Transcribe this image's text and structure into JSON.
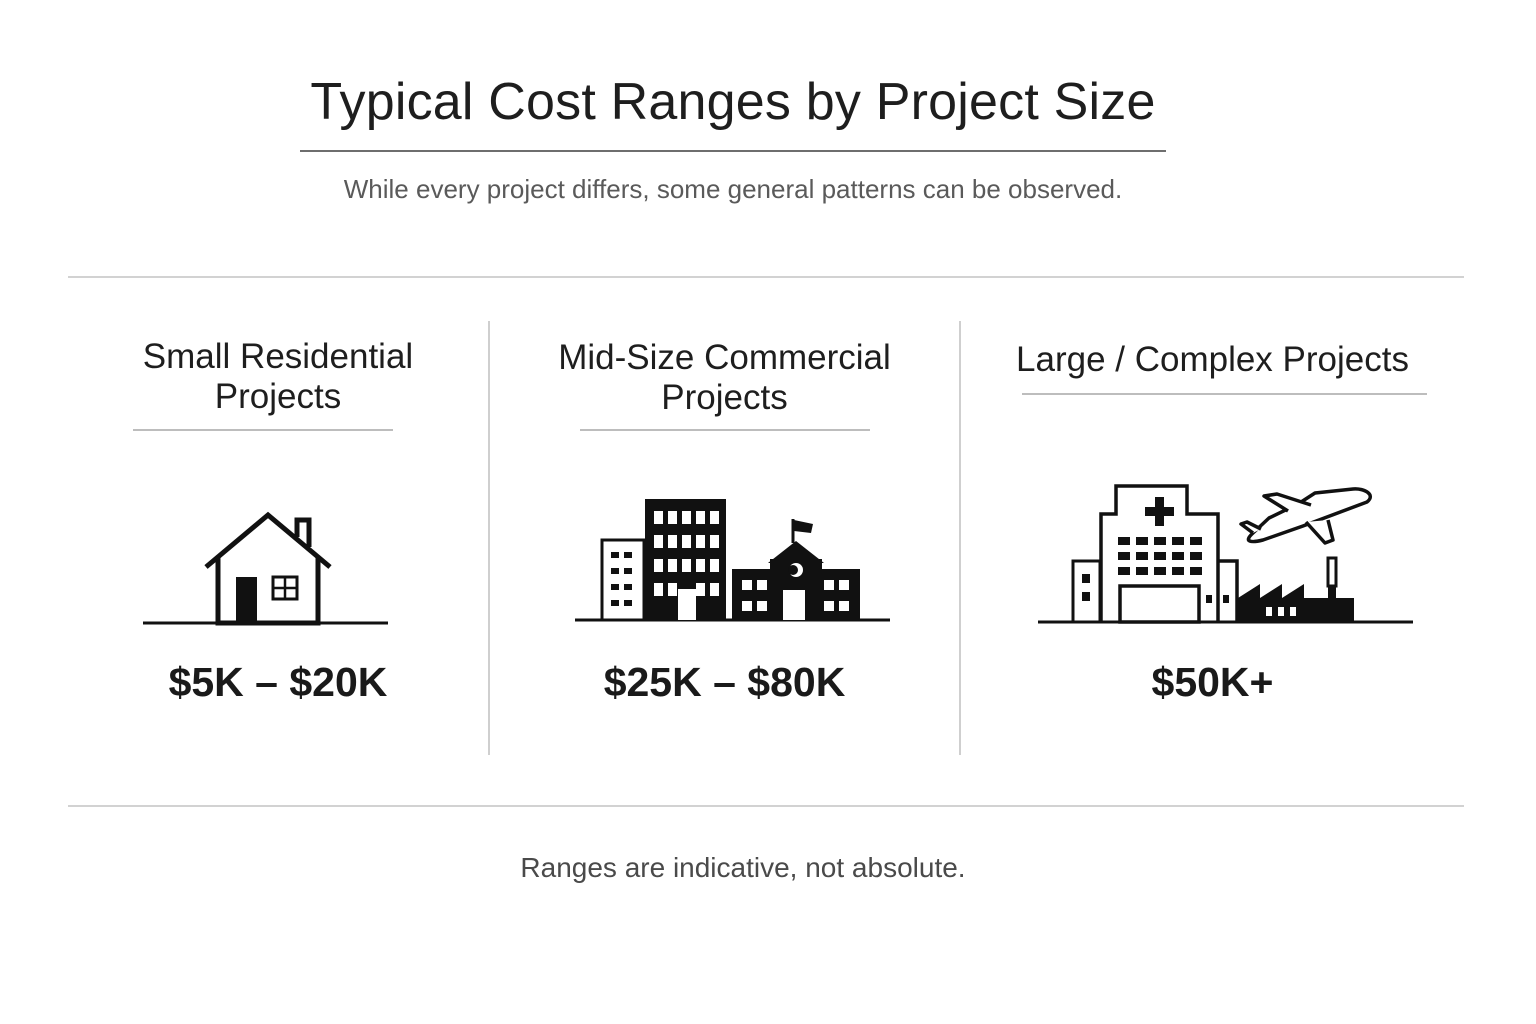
{
  "header": {
    "title": "Typical Cost Ranges by Project Size",
    "subtitle": "While every project differs, some general patterns can be observed."
  },
  "columns": [
    {
      "title_line1": "Small Residential",
      "title_line2": "Projects",
      "price": "$5K – $20K",
      "icon": "house-icon"
    },
    {
      "title_line1": "Mid-Size Commercial",
      "title_line2": "Projects",
      "price": "$25K – $80K",
      "icon": "commercial-buildings-icon"
    },
    {
      "title_line1": "Large / Complex Projects",
      "title_line2": "",
      "price": "$50K+",
      "icon": "hospital-airplane-factory-icon"
    }
  ],
  "footer": {
    "note": "Ranges are indicative, not absolute."
  },
  "colors": {
    "text": "#1e1e1e",
    "muted": "#5a5a5a",
    "rule": "#d2d2d2",
    "icon": "#111111"
  }
}
